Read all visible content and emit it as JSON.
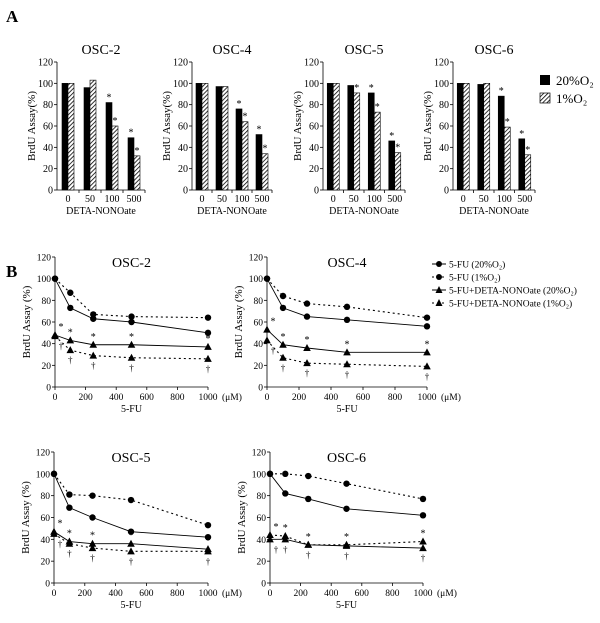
{
  "panels": {
    "a": "A",
    "b": "B"
  },
  "legend_a": [
    "20%O₂",
    "1%O₂"
  ],
  "legend_b": [
    "5-FU (20%O₂)",
    "5-FU (1%O₂)",
    "5-FU+DETA-NONOate (20%O₂)",
    "5-FU+DETA-NONOate (1%O₂)"
  ],
  "chart_data": [
    {
      "type": "bar",
      "title": "OSC-2",
      "xlabel": "DETA-NONOate",
      "ylabel": "BrdU Assay(%)",
      "ylim": [
        0,
        120
      ],
      "yticks": [
        0,
        20,
        40,
        60,
        80,
        100,
        120
      ],
      "categories": [
        "0",
        "50",
        "100",
        "500"
      ],
      "series": [
        {
          "name": "20%O₂",
          "values": [
            100,
            96,
            82,
            49
          ],
          "sig": [
            false,
            false,
            true,
            true
          ]
        },
        {
          "name": "1%O₂",
          "values": [
            100,
            103,
            60,
            32
          ],
          "sig": [
            false,
            false,
            true,
            true
          ]
        }
      ]
    },
    {
      "type": "bar",
      "title": "OSC-4",
      "xlabel": "DETA-NONOate",
      "ylabel": "BrdU Assay(%)",
      "ylim": [
        0,
        120
      ],
      "yticks": [
        0,
        20,
        40,
        60,
        80,
        100,
        120
      ],
      "categories": [
        "0",
        "50",
        "100",
        "500"
      ],
      "series": [
        {
          "name": "20%O₂",
          "values": [
            100,
            97,
            76,
            52
          ],
          "sig": [
            false,
            false,
            true,
            true
          ]
        },
        {
          "name": "1%O₂",
          "values": [
            100,
            97,
            64,
            34
          ],
          "sig": [
            false,
            false,
            true,
            true
          ]
        }
      ]
    },
    {
      "type": "bar",
      "title": "OSC-5",
      "xlabel": "DETA-NONOate",
      "ylabel": "BrdU Assay(%)",
      "ylim": [
        0,
        120
      ],
      "yticks": [
        0,
        20,
        40,
        60,
        80,
        100,
        120
      ],
      "categories": [
        "0",
        "50",
        "100",
        "500"
      ],
      "series": [
        {
          "name": "20%O₂",
          "values": [
            100,
            98,
            91,
            46
          ],
          "sig": [
            false,
            false,
            true,
            true
          ]
        },
        {
          "name": "1%O₂",
          "values": [
            100,
            91,
            73,
            35
          ],
          "sig": [
            false,
            true,
            true,
            true
          ]
        }
      ]
    },
    {
      "type": "bar",
      "title": "OSC-6",
      "xlabel": "DETA-NONOate",
      "ylabel": "BrdU Assay(%)",
      "ylim": [
        0,
        120
      ],
      "yticks": [
        0,
        20,
        40,
        60,
        80,
        100,
        120
      ],
      "categories": [
        "0",
        "50",
        "100",
        "500"
      ],
      "series": [
        {
          "name": "20%O₂",
          "values": [
            100,
            99,
            88,
            48
          ],
          "sig": [
            false,
            false,
            true,
            true
          ]
        },
        {
          "name": "1%O₂",
          "values": [
            100,
            100,
            59,
            33
          ],
          "sig": [
            false,
            false,
            true,
            true
          ]
        }
      ]
    },
    {
      "type": "line",
      "title": "OSC-2",
      "xlabel": "5-FU",
      "xunit": "(μM)",
      "ylabel": "BrdU Assay (%)",
      "xlim": [
        0,
        1000
      ],
      "ylim": [
        0,
        120
      ],
      "xticks": [
        0,
        200,
        400,
        600,
        800,
        1000
      ],
      "yticks": [
        0,
        20,
        40,
        60,
        80,
        100,
        120
      ],
      "x": [
        0,
        100,
        250,
        500,
        1000
      ],
      "series": [
        {
          "name": "5-FU (20%O₂)",
          "values": [
            100,
            73,
            63,
            60,
            50
          ]
        },
        {
          "name": "5-FU (1%O₂)",
          "values": [
            100,
            87,
            67,
            65,
            64
          ]
        },
        {
          "name": "5-FU+DETA-NONOate (20%O₂)",
          "values": [
            48,
            43,
            39,
            39,
            37
          ]
        },
        {
          "name": "5-FU+DETA-NONOate (1%O₂)",
          "values": [
            47,
            34,
            29,
            27,
            26
          ]
        }
      ],
      "annotations": {
        "star": "*",
        "dagger": "†"
      }
    },
    {
      "type": "line",
      "title": "OSC-4",
      "xlabel": "5-FU",
      "xunit": "(μM)",
      "ylabel": "BrdU Assay (%)",
      "xlim": [
        0,
        1000
      ],
      "ylim": [
        0,
        120
      ],
      "xticks": [
        0,
        200,
        400,
        600,
        800,
        1000
      ],
      "yticks": [
        0,
        20,
        40,
        60,
        80,
        100,
        120
      ],
      "x": [
        0,
        100,
        250,
        500,
        1000
      ],
      "series": [
        {
          "name": "5-FU (20%O₂)",
          "values": [
            100,
            73,
            65,
            62,
            56
          ]
        },
        {
          "name": "5-FU (1%O₂)",
          "values": [
            100,
            84,
            77,
            74,
            64
          ]
        },
        {
          "name": "5-FU+DETA-NONOate (20%O₂)",
          "values": [
            53,
            39,
            36,
            32,
            32
          ]
        },
        {
          "name": "5-FU+DETA-NONOate (1%O₂)",
          "values": [
            43,
            27,
            22,
            21,
            19
          ]
        }
      ],
      "annotations": {
        "star": "*",
        "dagger": "†"
      }
    },
    {
      "type": "line",
      "title": "OSC-5",
      "xlabel": "5-FU",
      "xunit": "(μM)",
      "ylabel": "BrdU Assay (%)",
      "xlim": [
        0,
        1000
      ],
      "ylim": [
        0,
        120
      ],
      "xticks": [
        0,
        200,
        400,
        600,
        800,
        1000
      ],
      "yticks": [
        0,
        20,
        40,
        60,
        80,
        100,
        120
      ],
      "x": [
        0,
        100,
        250,
        500,
        1000
      ],
      "series": [
        {
          "name": "5-FU (20%O₂)",
          "values": [
            100,
            69,
            60,
            47,
            42
          ]
        },
        {
          "name": "5-FU (1%O₂)",
          "values": [
            100,
            81,
            80,
            76,
            53
          ]
        },
        {
          "name": "5-FU+DETA-NONOate (20%O₂)",
          "values": [
            47,
            38,
            36,
            36,
            31
          ]
        },
        {
          "name": "5-FU+DETA-NONOate (1%O₂)",
          "values": [
            45,
            36,
            32,
            29,
            29
          ]
        }
      ],
      "annotations": {
        "star": "*",
        "dagger": "†"
      }
    },
    {
      "type": "line",
      "title": "OSC-6",
      "xlabel": "5-FU",
      "xunit": "(μM)",
      "ylabel": "BrdU Assay (%)",
      "xlim": [
        0,
        1000
      ],
      "ylim": [
        0,
        120
      ],
      "xticks": [
        0,
        200,
        400,
        600,
        800,
        1000
      ],
      "yticks": [
        0,
        20,
        40,
        60,
        80,
        100,
        120
      ],
      "x": [
        0,
        100,
        250,
        500,
        1000
      ],
      "series": [
        {
          "name": "5-FU (20%O₂)",
          "values": [
            100,
            82,
            77,
            68,
            62
          ]
        },
        {
          "name": "5-FU (1%O₂)",
          "values": [
            100,
            100,
            98,
            91,
            77
          ]
        },
        {
          "name": "5-FU+DETA-NONOate (20%O₂)",
          "values": [
            40,
            40,
            35,
            34,
            32
          ]
        },
        {
          "name": "5-FU+DETA-NONOate (1%O₂)",
          "values": [
            44,
            43,
            35,
            35,
            38
          ]
        }
      ],
      "annotations": {
        "star": "*",
        "dagger": "†"
      }
    }
  ]
}
